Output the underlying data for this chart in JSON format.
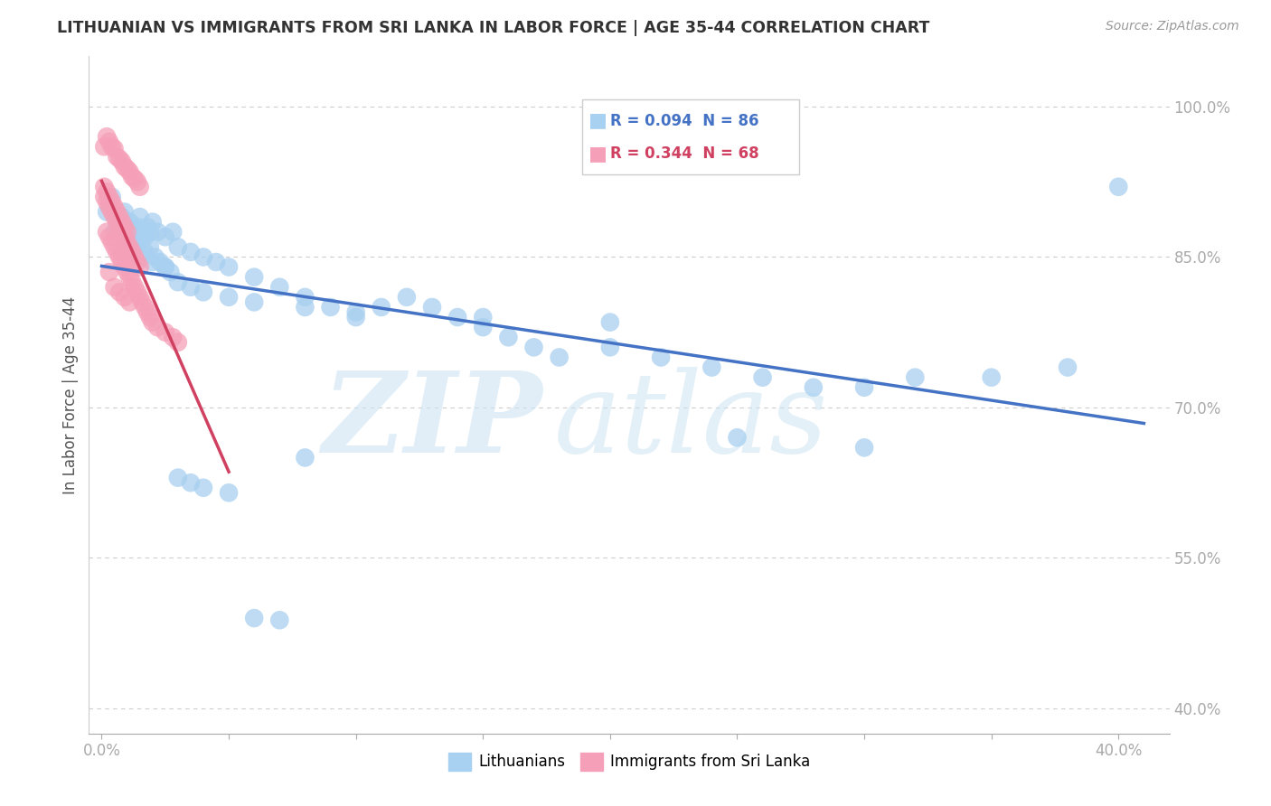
{
  "title": "LITHUANIAN VS IMMIGRANTS FROM SRI LANKA IN LABOR FORCE | AGE 35-44 CORRELATION CHART",
  "source": "Source: ZipAtlas.com",
  "ylabel": "In Labor Force | Age 35-44",
  "ytick_values": [
    0.4,
    0.55,
    0.7,
    0.85,
    1.0
  ],
  "ytick_labels": [
    "40.0%",
    "55.0%",
    "70.0%",
    "85.0%",
    "100.0%"
  ],
  "xtick_values": [
    0.0,
    0.05,
    0.1,
    0.15,
    0.2,
    0.25,
    0.3,
    0.35,
    0.4
  ],
  "xtick_labels": [
    "0.0%",
    "",
    "",
    "",
    "",
    "",
    "",
    "",
    "40.0%"
  ],
  "xlim": [
    -0.005,
    0.42
  ],
  "ylim": [
    0.375,
    1.05
  ],
  "legend_blue_r": 0.094,
  "legend_blue_n": 86,
  "legend_pink_r": 0.344,
  "legend_pink_n": 68,
  "blue_color": "#a8d0f0",
  "pink_color": "#f5a0b8",
  "blue_line_color": "#4472c4",
  "pink_line_color": "#d04060",
  "blue_scatter": {
    "x": [
      0.002,
      0.003,
      0.004,
      0.005,
      0.006,
      0.007,
      0.008,
      0.009,
      0.01,
      0.011,
      0.012,
      0.013,
      0.014,
      0.015,
      0.016,
      0.017,
      0.018,
      0.019,
      0.02,
      0.022,
      0.025,
      0.028,
      0.03,
      0.035,
      0.04,
      0.045,
      0.05,
      0.06,
      0.07,
      0.08,
      0.09,
      0.1,
      0.11,
      0.12,
      0.13,
      0.14,
      0.15,
      0.16,
      0.17,
      0.18,
      0.2,
      0.22,
      0.24,
      0.26,
      0.28,
      0.3,
      0.32,
      0.35,
      0.38,
      0.4,
      0.008,
      0.01,
      0.012,
      0.015,
      0.02,
      0.025,
      0.03,
      0.035,
      0.04,
      0.05,
      0.06,
      0.08,
      0.1,
      0.15,
      0.2,
      0.25,
      0.3,
      0.005,
      0.007,
      0.009,
      0.011,
      0.013,
      0.015,
      0.017,
      0.019,
      0.021,
      0.023,
      0.025,
      0.027,
      0.03,
      0.035,
      0.04,
      0.05,
      0.06,
      0.07,
      0.08
    ],
    "y": [
      0.895,
      0.9,
      0.91,
      0.895,
      0.885,
      0.875,
      0.89,
      0.895,
      0.88,
      0.885,
      0.875,
      0.87,
      0.88,
      0.89,
      0.875,
      0.87,
      0.88,
      0.875,
      0.885,
      0.875,
      0.87,
      0.875,
      0.86,
      0.855,
      0.85,
      0.845,
      0.84,
      0.83,
      0.82,
      0.81,
      0.8,
      0.79,
      0.8,
      0.81,
      0.8,
      0.79,
      0.78,
      0.77,
      0.76,
      0.75,
      0.76,
      0.75,
      0.74,
      0.73,
      0.72,
      0.72,
      0.73,
      0.73,
      0.74,
      0.92,
      0.855,
      0.86,
      0.865,
      0.85,
      0.845,
      0.84,
      0.825,
      0.82,
      0.815,
      0.81,
      0.805,
      0.8,
      0.795,
      0.79,
      0.785,
      0.67,
      0.66,
      0.875,
      0.88,
      0.885,
      0.87,
      0.875,
      0.865,
      0.855,
      0.86,
      0.85,
      0.845,
      0.84,
      0.835,
      0.63,
      0.625,
      0.62,
      0.615,
      0.49,
      0.488,
      0.65
    ]
  },
  "pink_scatter": {
    "x": [
      0.001,
      0.002,
      0.003,
      0.004,
      0.005,
      0.006,
      0.007,
      0.008,
      0.009,
      0.01,
      0.011,
      0.012,
      0.013,
      0.014,
      0.015,
      0.001,
      0.002,
      0.003,
      0.004,
      0.005,
      0.006,
      0.007,
      0.008,
      0.009,
      0.01,
      0.011,
      0.012,
      0.013,
      0.014,
      0.015,
      0.001,
      0.002,
      0.003,
      0.004,
      0.005,
      0.006,
      0.007,
      0.008,
      0.009,
      0.01,
      0.002,
      0.003,
      0.004,
      0.005,
      0.006,
      0.007,
      0.008,
      0.009,
      0.01,
      0.011,
      0.012,
      0.013,
      0.014,
      0.015,
      0.016,
      0.017,
      0.018,
      0.019,
      0.02,
      0.022,
      0.025,
      0.028,
      0.03,
      0.003,
      0.005,
      0.007,
      0.009,
      0.011
    ],
    "y": [
      0.96,
      0.97,
      0.965,
      0.96,
      0.958,
      0.95,
      0.948,
      0.945,
      0.94,
      0.938,
      0.935,
      0.93,
      0.928,
      0.925,
      0.92,
      0.91,
      0.905,
      0.9,
      0.895,
      0.89,
      0.885,
      0.88,
      0.875,
      0.87,
      0.865,
      0.86,
      0.855,
      0.85,
      0.845,
      0.84,
      0.92,
      0.915,
      0.91,
      0.905,
      0.9,
      0.895,
      0.89,
      0.885,
      0.88,
      0.875,
      0.875,
      0.87,
      0.865,
      0.86,
      0.855,
      0.85,
      0.845,
      0.84,
      0.835,
      0.83,
      0.825,
      0.82,
      0.815,
      0.81,
      0.805,
      0.8,
      0.795,
      0.79,
      0.785,
      0.78,
      0.775,
      0.77,
      0.765,
      0.835,
      0.82,
      0.815,
      0.81,
      0.805
    ]
  }
}
